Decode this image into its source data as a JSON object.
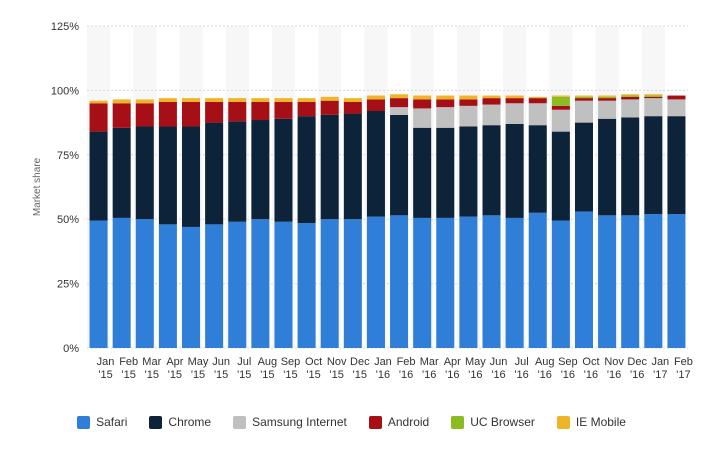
{
  "chart_data": {
    "type": "bar",
    "stacked": true,
    "ylabel": "Market share",
    "ylim": [
      0,
      125
    ],
    "yticks": [
      0,
      25,
      50,
      75,
      100,
      125
    ],
    "ytick_labels": [
      "0%",
      "25%",
      "50%",
      "75%",
      "100%",
      "125%"
    ],
    "grid": true,
    "legend_position": "bottom",
    "categories": [
      [
        "Jan",
        "'15"
      ],
      [
        "Feb",
        "'15"
      ],
      [
        "Mar",
        "'15"
      ],
      [
        "Apr",
        "'15"
      ],
      [
        "May",
        "'15"
      ],
      [
        "Jun",
        "'15"
      ],
      [
        "Jul",
        "'15"
      ],
      [
        "Aug",
        "'15"
      ],
      [
        "Sep",
        "'15"
      ],
      [
        "Oct",
        "'15"
      ],
      [
        "Nov",
        "'15"
      ],
      [
        "Dec",
        "'15"
      ],
      [
        "Jan",
        "'16"
      ],
      [
        "Feb",
        "'16"
      ],
      [
        "Mar",
        "'16"
      ],
      [
        "Apr",
        "'16"
      ],
      [
        "May",
        "'16"
      ],
      [
        "Jun",
        "'16"
      ],
      [
        "Jul",
        "'16"
      ],
      [
        "Aug",
        "'16"
      ],
      [
        "Sep",
        "'16"
      ],
      [
        "Oct",
        "'16"
      ],
      [
        "Nov",
        "'16"
      ],
      [
        "Dec",
        "'16"
      ],
      [
        "Jan",
        "'17"
      ],
      [
        "Feb",
        "'17"
      ]
    ],
    "series": [
      {
        "name": "Safari",
        "color": "#2f7ed8",
        "values": [
          49.5,
          50.5,
          50,
          48,
          47,
          48,
          49,
          50,
          49,
          48.5,
          50,
          50,
          51,
          51.5,
          50.5,
          50.5,
          51,
          51.5,
          50.5,
          52.5,
          49.5,
          53,
          51.5,
          51.5,
          52,
          52
        ]
      },
      {
        "name": "Chrome",
        "color": "#0d233a",
        "values": [
          34.5,
          35,
          36,
          38,
          39,
          39.5,
          39,
          38.5,
          40,
          41.5,
          40.5,
          41,
          41,
          39,
          35,
          35,
          35,
          35,
          36.5,
          34,
          34.5,
          34.5,
          37.5,
          38,
          38,
          38
        ]
      },
      {
        "name": "Samsung Internet",
        "color": "#c0c0c0",
        "values": [
          0,
          0,
          0,
          0,
          0,
          0,
          0,
          0,
          0,
          0,
          0,
          0,
          0,
          3,
          7.5,
          8,
          8,
          8,
          8,
          8.5,
          8.5,
          8.5,
          7,
          7,
          7,
          6.5
        ]
      },
      {
        "name": "Android",
        "color": "#a50f15",
        "values": [
          11,
          9.5,
          9,
          9.5,
          9.5,
          8,
          7.5,
          7,
          6.5,
          5.5,
          5.5,
          4.5,
          4.5,
          3.5,
          3.5,
          3,
          2.5,
          2.5,
          2,
          2,
          1.5,
          1,
          1,
          1,
          0.5,
          1.5
        ]
      },
      {
        "name": "UC Browser",
        "color": "#8bbc21",
        "values": [
          0,
          0,
          0,
          0,
          0,
          0,
          0,
          0,
          0,
          0,
          0,
          0,
          0,
          0,
          0,
          0,
          0,
          0,
          0,
          0,
          3.5,
          0.5,
          0.5,
          0.5,
          0.5,
          0
        ]
      },
      {
        "name": "IE Mobile",
        "color": "#f0b429",
        "values": [
          1,
          1.5,
          1.5,
          1.5,
          1.5,
          1.5,
          1.5,
          1.5,
          1.5,
          1.5,
          1.5,
          1.5,
          1.5,
          1.5,
          1.5,
          1.5,
          1.5,
          1,
          1,
          0.5,
          0.5,
          0.5,
          0.5,
          0.5,
          0.5,
          0
        ]
      }
    ]
  }
}
